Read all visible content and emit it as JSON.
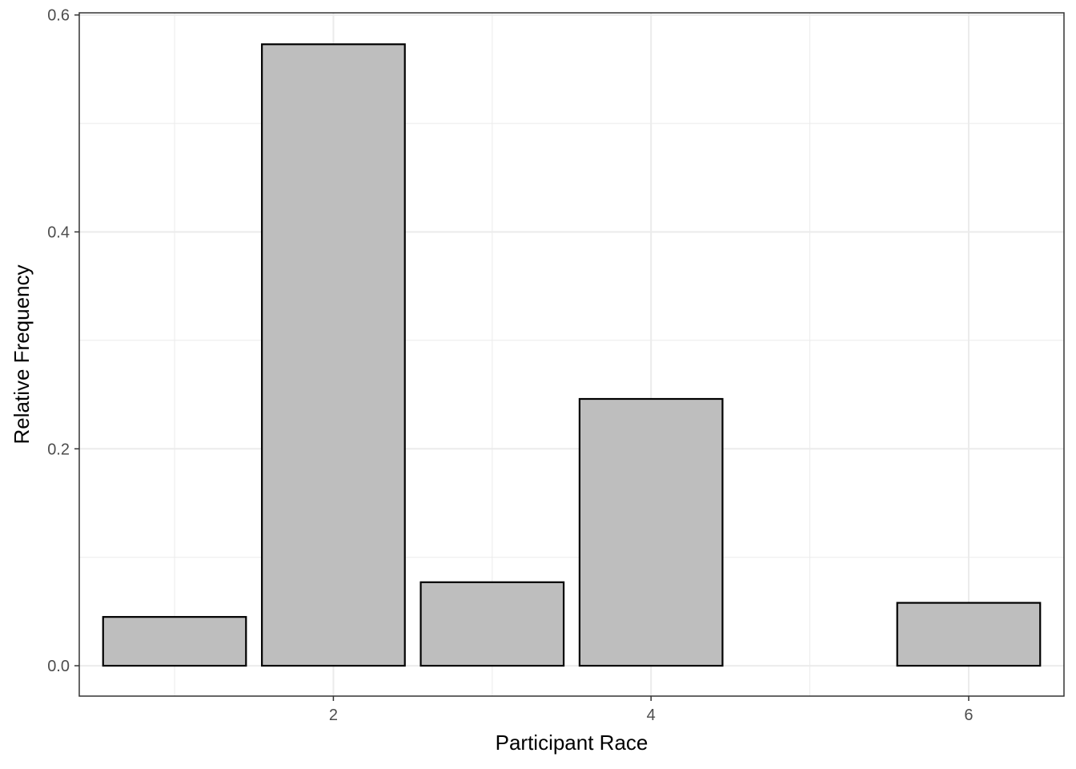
{
  "chart_data": {
    "type": "bar",
    "xlabel": "Participant Race",
    "ylabel": "Relative Frequency",
    "x": [
      1,
      2,
      3,
      4,
      6
    ],
    "values": [
      0.045,
      0.573,
      0.077,
      0.246,
      0.058
    ],
    "xlim": [
      0.4,
      6.6
    ],
    "ylim": [
      -0.028,
      0.602
    ],
    "x_ticks": [
      2,
      4,
      6
    ],
    "x_tick_labels": [
      "2",
      "4",
      "6"
    ],
    "y_ticks": [
      0.0,
      0.2,
      0.4,
      0.6
    ],
    "y_tick_labels": [
      "0.0",
      "0.2",
      "0.4",
      "0.6"
    ],
    "bar_width": 0.9,
    "bar_fill": "#bebebe",
    "bar_stroke": "#000000",
    "grid": true,
    "legend": "none"
  }
}
